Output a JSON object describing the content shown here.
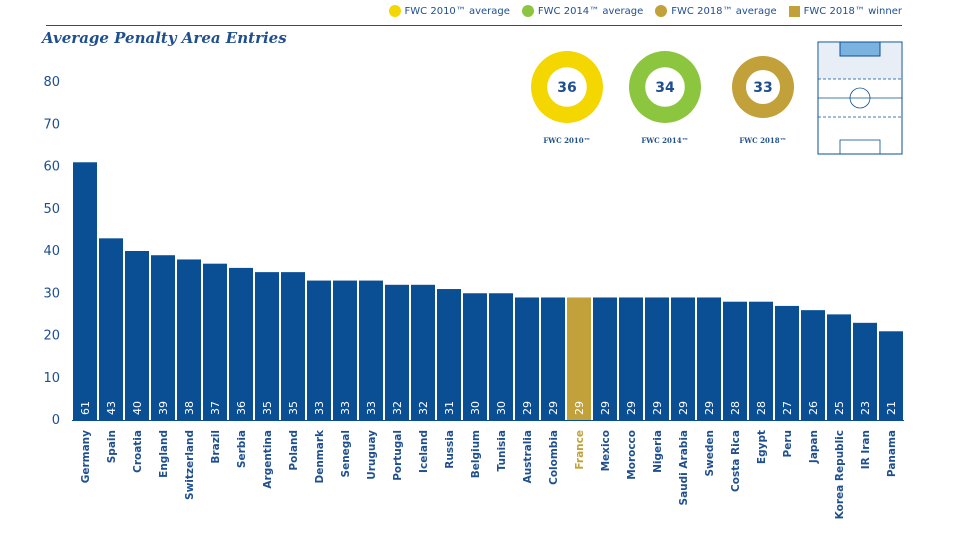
{
  "legend": [
    {
      "label": "FWC 2010™ average",
      "color": "#f4d600",
      "shape": "circle"
    },
    {
      "label": "FWC 2014™ average",
      "color": "#8cc63f",
      "shape": "circle"
    },
    {
      "label": "FWC 2018™ average",
      "color": "#c2a03a",
      "shape": "circle"
    },
    {
      "label": "FWC 2018™ winner",
      "color": "#c2a03a",
      "shape": "square"
    }
  ],
  "title": "Average Penalty Area Entries",
  "averages": [
    {
      "value": "36",
      "label": "FWC 2010™",
      "color": "#f4d600"
    },
    {
      "value": "34",
      "label": "FWC 2014™",
      "color": "#8cc63f"
    },
    {
      "value": "33",
      "label": "FWC 2018™",
      "color": "#c2a03a"
    }
  ],
  "colors": {
    "bar": "#0a4f94",
    "winner": "#c2a03a",
    "text": "#1f4f8f",
    "pitch_highlight": "#7bb3e0"
  },
  "chart_data": {
    "type": "bar",
    "title": "Average Penalty Area Entries",
    "xlabel": "",
    "ylabel": "",
    "ylim": [
      0,
      80
    ],
    "yticks": [
      0,
      10,
      20,
      30,
      40,
      50,
      60,
      70,
      80
    ],
    "grid": false,
    "highlight": "France",
    "categories": [
      "Germany",
      "Spain",
      "Croatia",
      "England",
      "Switzerland",
      "Brazil",
      "Serbia",
      "Argentina",
      "Poland",
      "Denmark",
      "Senegal",
      "Uruguay",
      "Portugal",
      "Iceland",
      "Russia",
      "Belgium",
      "Tunisia",
      "Australia",
      "Colombia",
      "France",
      "Mexico",
      "Morocco",
      "Nigeria",
      "Saudi Arabia",
      "Sweden",
      "Costa Rica",
      "Egypt",
      "Peru",
      "Japan",
      "Korea Republic",
      "IR Iran",
      "Panama"
    ],
    "values": [
      61,
      43,
      40,
      39,
      38,
      37,
      36,
      35,
      35,
      33,
      33,
      33,
      32,
      32,
      31,
      30,
      30,
      29,
      29,
      29,
      29,
      29,
      29,
      29,
      29,
      28,
      28,
      27,
      26,
      25,
      23,
      21
    ]
  }
}
